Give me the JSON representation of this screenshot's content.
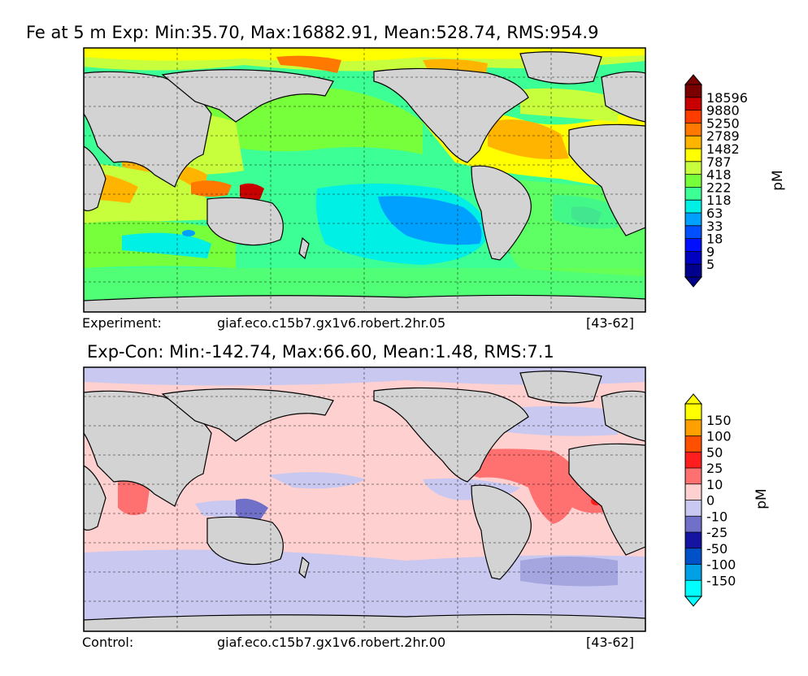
{
  "panels": [
    {
      "title": "Fe at 5 m Exp: Min:35.70, Max:16882.91, Mean:528.74, RMS:954.9",
      "footer_label": "Experiment:",
      "footer_run": "giaf.eco.c15b7.gx1v6.robert.2hr.05",
      "footer_years": "[43-62]"
    },
    {
      "title": "Exp-Con: Min:-142.74, Max:66.60, Mean:1.48, RMS:7.1",
      "footer_label": "Control:",
      "footer_run": "giaf.eco.c15b7.gx1v6.robert.2hr.00",
      "footer_years": "[43-62]"
    }
  ],
  "chart_data": [
    {
      "type": "heatmap",
      "title": "Fe at 5 m Exp: Min:35.70, Max:16882.91, Mean:528.74, RMS:954.9",
      "variable": "Fe",
      "depth": "5 m",
      "stats": {
        "min": 35.7,
        "max": 16882.91,
        "mean": 528.74,
        "rms": 954.9
      },
      "colorbar_label": "pM",
      "colorbar_levels": [
        "18596",
        "9880",
        "5250",
        "2789",
        "1482",
        "787",
        "418",
        "222",
        "118",
        "63",
        "33",
        "18",
        "9",
        "5"
      ],
      "colorbar_colors": [
        "#7a0000",
        "#c80000",
        "#ff3c00",
        "#ff7800",
        "#ffb400",
        "#ffff00",
        "#c8ff3c",
        "#78ff3c",
        "#3cff96",
        "#00f0e6",
        "#00a0ff",
        "#0050ff",
        "#0010ff",
        "#0000c0",
        "#00008c"
      ],
      "extend": "both",
      "grid": true
    },
    {
      "type": "heatmap",
      "title": "Exp-Con: Min:-142.74, Max:66.60, Mean:1.48, RMS:7.1",
      "stats": {
        "min": -142.74,
        "max": 66.6,
        "mean": 1.48,
        "rms": 7.1
      },
      "colorbar_label": "pM",
      "colorbar_levels": [
        "150",
        "100",
        "50",
        "25",
        "10",
        "0",
        "-10",
        "-25",
        "-50",
        "-100",
        "-150"
      ],
      "colorbar_colors": [
        "#ffff00",
        "#ffa000",
        "#ff5000",
        "#ff1e1e",
        "#ff7070",
        "#ffd0d0",
        "#c8c8f0",
        "#7070c8",
        "#1414a0",
        "#0050c8",
        "#00a0e6",
        "#00ffff"
      ],
      "extend": "both",
      "grid": true
    }
  ]
}
